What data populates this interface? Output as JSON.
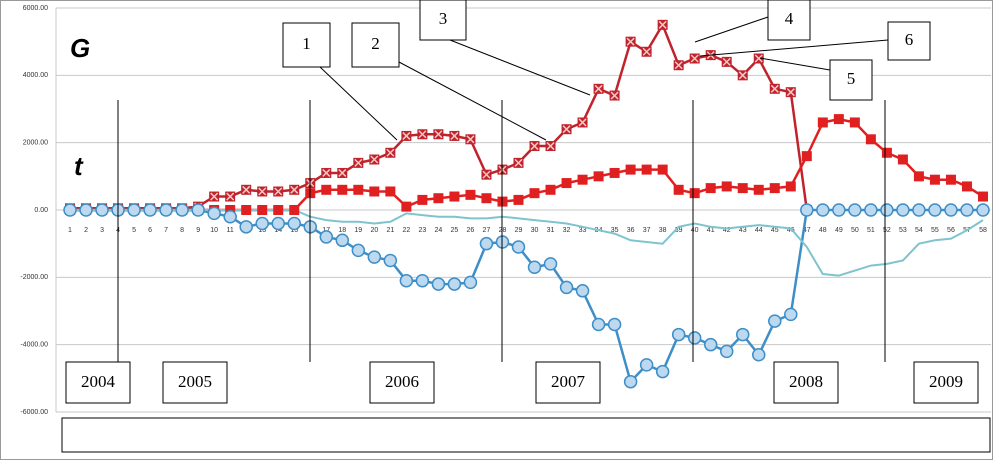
{
  "chart_data": {
    "type": "line",
    "categories": [
      "1",
      "2",
      "3",
      "4",
      "5",
      "6",
      "7",
      "8",
      "9",
      "10",
      "11",
      "12",
      "13",
      "14",
      "15",
      "16",
      "17",
      "18",
      "19",
      "20",
      "21",
      "22",
      "23",
      "24",
      "25",
      "26",
      "27",
      "28",
      "29",
      "30",
      "31",
      "32",
      "33",
      "34",
      "35",
      "36",
      "37",
      "38",
      "39",
      "40",
      "41",
      "42",
      "43",
      "44",
      "45",
      "46",
      "47",
      "48",
      "49",
      "50",
      "51",
      "52",
      "53",
      "54",
      "55",
      "56",
      "57",
      "58"
    ],
    "series": [
      {
        "color": "#c0232b",
        "marker": "square-x",
        "values": [
          50,
          50,
          50,
          50,
          50,
          50,
          50,
          50,
          100,
          400,
          400,
          600,
          550,
          550,
          600,
          800,
          1100,
          1100,
          1400,
          1500,
          1700,
          2200,
          2250,
          2250,
          2200,
          2100,
          1050,
          1200,
          1400,
          1900,
          1900,
          2400,
          2600,
          3600,
          3400,
          5000,
          4700,
          5500,
          4300,
          4500,
          4600,
          4400,
          4000,
          4500,
          3600,
          3500,
          0,
          null,
          null,
          null,
          null,
          null,
          null,
          null,
          null,
          null,
          null,
          null
        ]
      },
      {
        "color": "#e02020",
        "marker": "square",
        "values": [
          0,
          0,
          0,
          0,
          0,
          0,
          0,
          0,
          0,
          0,
          0,
          0,
          0,
          0,
          0,
          500,
          600,
          600,
          600,
          550,
          550,
          100,
          300,
          350,
          400,
          450,
          350,
          250,
          300,
          500,
          600,
          800,
          900,
          1000,
          1100,
          1200,
          1200,
          1200,
          600,
          500,
          650,
          700,
          650,
          600,
          650,
          700,
          1600,
          2600,
          2700,
          2600,
          2100,
          1700,
          1500,
          1000,
          900,
          900,
          700,
          400
        ]
      },
      {
        "color": "#3e8ec8",
        "marker": "circle",
        "values": [
          0,
          0,
          0,
          0,
          0,
          0,
          0,
          0,
          0,
          -100,
          -200,
          -500,
          -400,
          -400,
          -400,
          -500,
          -800,
          -900,
          -1200,
          -1400,
          -1500,
          -2100,
          -2100,
          -2200,
          -2200,
          -2150,
          -1000,
          -950,
          -1100,
          -1700,
          -1600,
          -2300,
          -2400,
          -3400,
          -3400,
          -5100,
          -4600,
          -4800,
          -3700,
          -3800,
          -4000,
          -4200,
          -3700,
          -4300,
          -3300,
          -3100,
          0,
          0,
          0,
          0,
          0,
          0,
          0,
          0,
          0,
          0,
          0,
          0
        ]
      },
      {
        "color": "#7ec4cf",
        "marker": "none",
        "values": [
          0,
          0,
          0,
          0,
          0,
          0,
          0,
          0,
          0,
          0,
          0,
          0,
          0,
          0,
          0,
          -200,
          -300,
          -350,
          -350,
          -400,
          -350,
          -100,
          -150,
          -200,
          -200,
          -250,
          -250,
          -200,
          -250,
          -300,
          -350,
          -400,
          -500,
          -600,
          -700,
          -900,
          -950,
          -1000,
          -500,
          -400,
          -500,
          -550,
          -500,
          -450,
          -500,
          -550,
          -1100,
          -1900,
          -1950,
          -1800,
          -1650,
          -1600,
          -1500,
          -1000,
          -900,
          -850,
          -600,
          -300
        ]
      }
    ],
    "ylim": [
      -6000,
      6000
    ],
    "yticks": [
      {
        "value": -6000,
        "label": "-6000.00"
      },
      {
        "value": -4000,
        "label": "-4000.00"
      },
      {
        "value": -2000,
        "label": "-2000.00"
      },
      {
        "value": 0,
        "label": "0.00"
      },
      {
        "value": 2000,
        "label": "2000.00"
      },
      {
        "value": 4000,
        "label": "4000.00"
      },
      {
        "value": 6000,
        "label": "6000.00"
      }
    ],
    "grid": true,
    "axis_letters": [
      "G",
      "t"
    ],
    "annotations": [
      "1",
      "2",
      "3",
      "4",
      "5",
      "6"
    ],
    "years": [
      "2004",
      "2005",
      "2006",
      "2007",
      "2008",
      "2009"
    ]
  }
}
